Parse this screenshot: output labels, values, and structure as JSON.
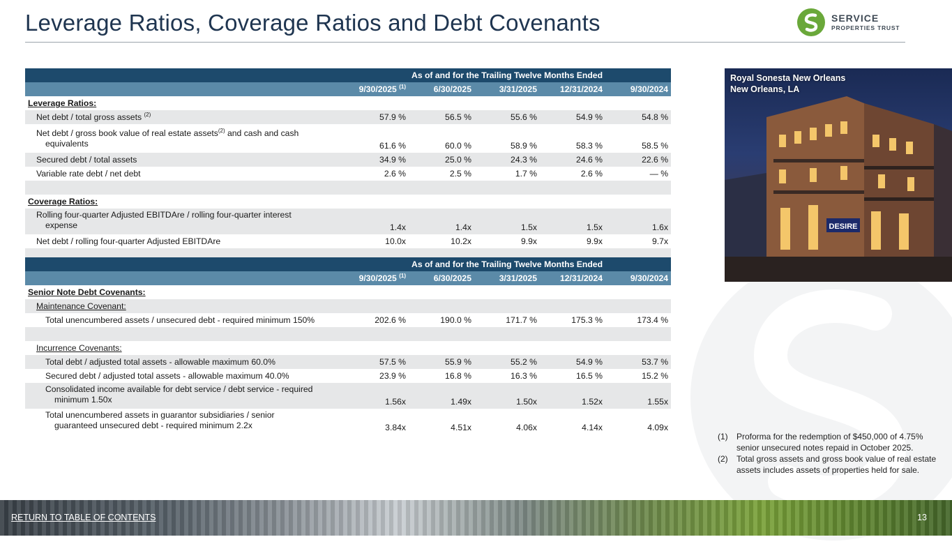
{
  "page": {
    "title": "Leverage Ratios, Coverage Ratios and Debt Covenants",
    "page_number": "13",
    "return_link": "RETURN TO TABLE OF CONTENTS"
  },
  "logo": {
    "line1": "SERVICE",
    "line2": "PROPERTIES TRUST",
    "brand_color": "#6aa83a"
  },
  "table1": {
    "group_header": "As of and for the Trailing Twelve Months Ended",
    "columns": [
      "9/30/2025",
      "6/30/2025",
      "3/31/2025",
      "12/31/2024",
      "9/30/2024"
    ],
    "first_col_footnote": "(1)",
    "leverage_heading": "Leverage Ratios:",
    "leverage_rows": [
      {
        "label": "Net debt / total gross assets",
        "sup": "(2)",
        "values": [
          "57.9 %",
          "56.5 %",
          "55.6 %",
          "54.9 %",
          "54.8 %"
        ]
      },
      {
        "label_a": "Net debt / gross book value of real estate assets",
        "sup": "(2)",
        "label_b": " and cash and cash",
        "label_c": "equivalents",
        "values": [
          "61.6 %",
          "60.0 %",
          "58.9 %",
          "58.3 %",
          "58.5 %"
        ]
      },
      {
        "label": "Secured debt / total assets",
        "values": [
          "34.9 %",
          "25.0 %",
          "24.3 %",
          "24.6 %",
          "22.6 %"
        ]
      },
      {
        "label": "Variable rate debt / net debt",
        "values": [
          "2.6 %",
          "2.5 %",
          "1.7 %",
          "2.6 %",
          "— %"
        ]
      }
    ],
    "coverage_heading": "Coverage Ratios:",
    "coverage_rows": [
      {
        "label_a": "Rolling four-quarter Adjusted EBITDAre / rolling four-quarter interest",
        "label_b": "expense",
        "values": [
          "1.4x",
          "1.4x",
          "1.5x",
          "1.5x",
          "1.6x"
        ]
      },
      {
        "label": "Net debt / rolling four-quarter Adjusted EBITDAre",
        "values": [
          "10.0x",
          "10.2x",
          "9.9x",
          "9.9x",
          "9.7x"
        ]
      }
    ]
  },
  "table2": {
    "group_header": "As of and for the Trailing Twelve Months Ended",
    "columns": [
      "9/30/2025",
      "6/30/2025",
      "3/31/2025",
      "12/31/2024",
      "9/30/2024"
    ],
    "first_col_footnote": "(1)",
    "heading": "Senior Note Debt Covenants:",
    "maintenance_heading": "Maintenance Covenant:",
    "maintenance_rows": [
      {
        "label": "Total unencumbered assets / unsecured debt - required minimum 150%",
        "values": [
          "202.6 %",
          "190.0 %",
          "171.7 %",
          "175.3 %",
          "173.4 %"
        ]
      }
    ],
    "incurrence_heading": "Incurrence Covenants:",
    "incurrence_rows": [
      {
        "label": "Total debt / adjusted total assets - allowable maximum 60.0%",
        "values": [
          "57.5 %",
          "55.9 %",
          "55.2 %",
          "54.9 %",
          "53.7 %"
        ]
      },
      {
        "label": "Secured debt / adjusted total assets - allowable maximum 40.0%",
        "values": [
          "23.9 %",
          "16.8 %",
          "16.3 %",
          "16.5 %",
          "15.2 %"
        ]
      },
      {
        "label_a": "Consolidated income available for debt service / debt service - required",
        "label_b": "minimum 1.50x",
        "values": [
          "1.56x",
          "1.49x",
          "1.50x",
          "1.52x",
          "1.55x"
        ]
      },
      {
        "label_a": "Total unencumbered assets in guarantor subsidiaries / senior",
        "label_b": "guaranteed unsecured debt - required minimum 2.2x",
        "values": [
          "3.84x",
          "4.51x",
          "4.06x",
          "4.14x",
          "4.09x"
        ]
      }
    ]
  },
  "photo": {
    "caption_line1": "Royal Sonesta New Orleans",
    "caption_line2": "New Orleans, LA",
    "sign_text": "DESIRE"
  },
  "footnotes": [
    {
      "num": "(1)",
      "text": "Proforma for the redemption of $450,000 of 4.75% senior unsecured notes repaid in October 2025."
    },
    {
      "num": "(2)",
      "text": "Total gross assets and gross book value of real estate assets includes assets of properties held for sale."
    }
  ]
}
